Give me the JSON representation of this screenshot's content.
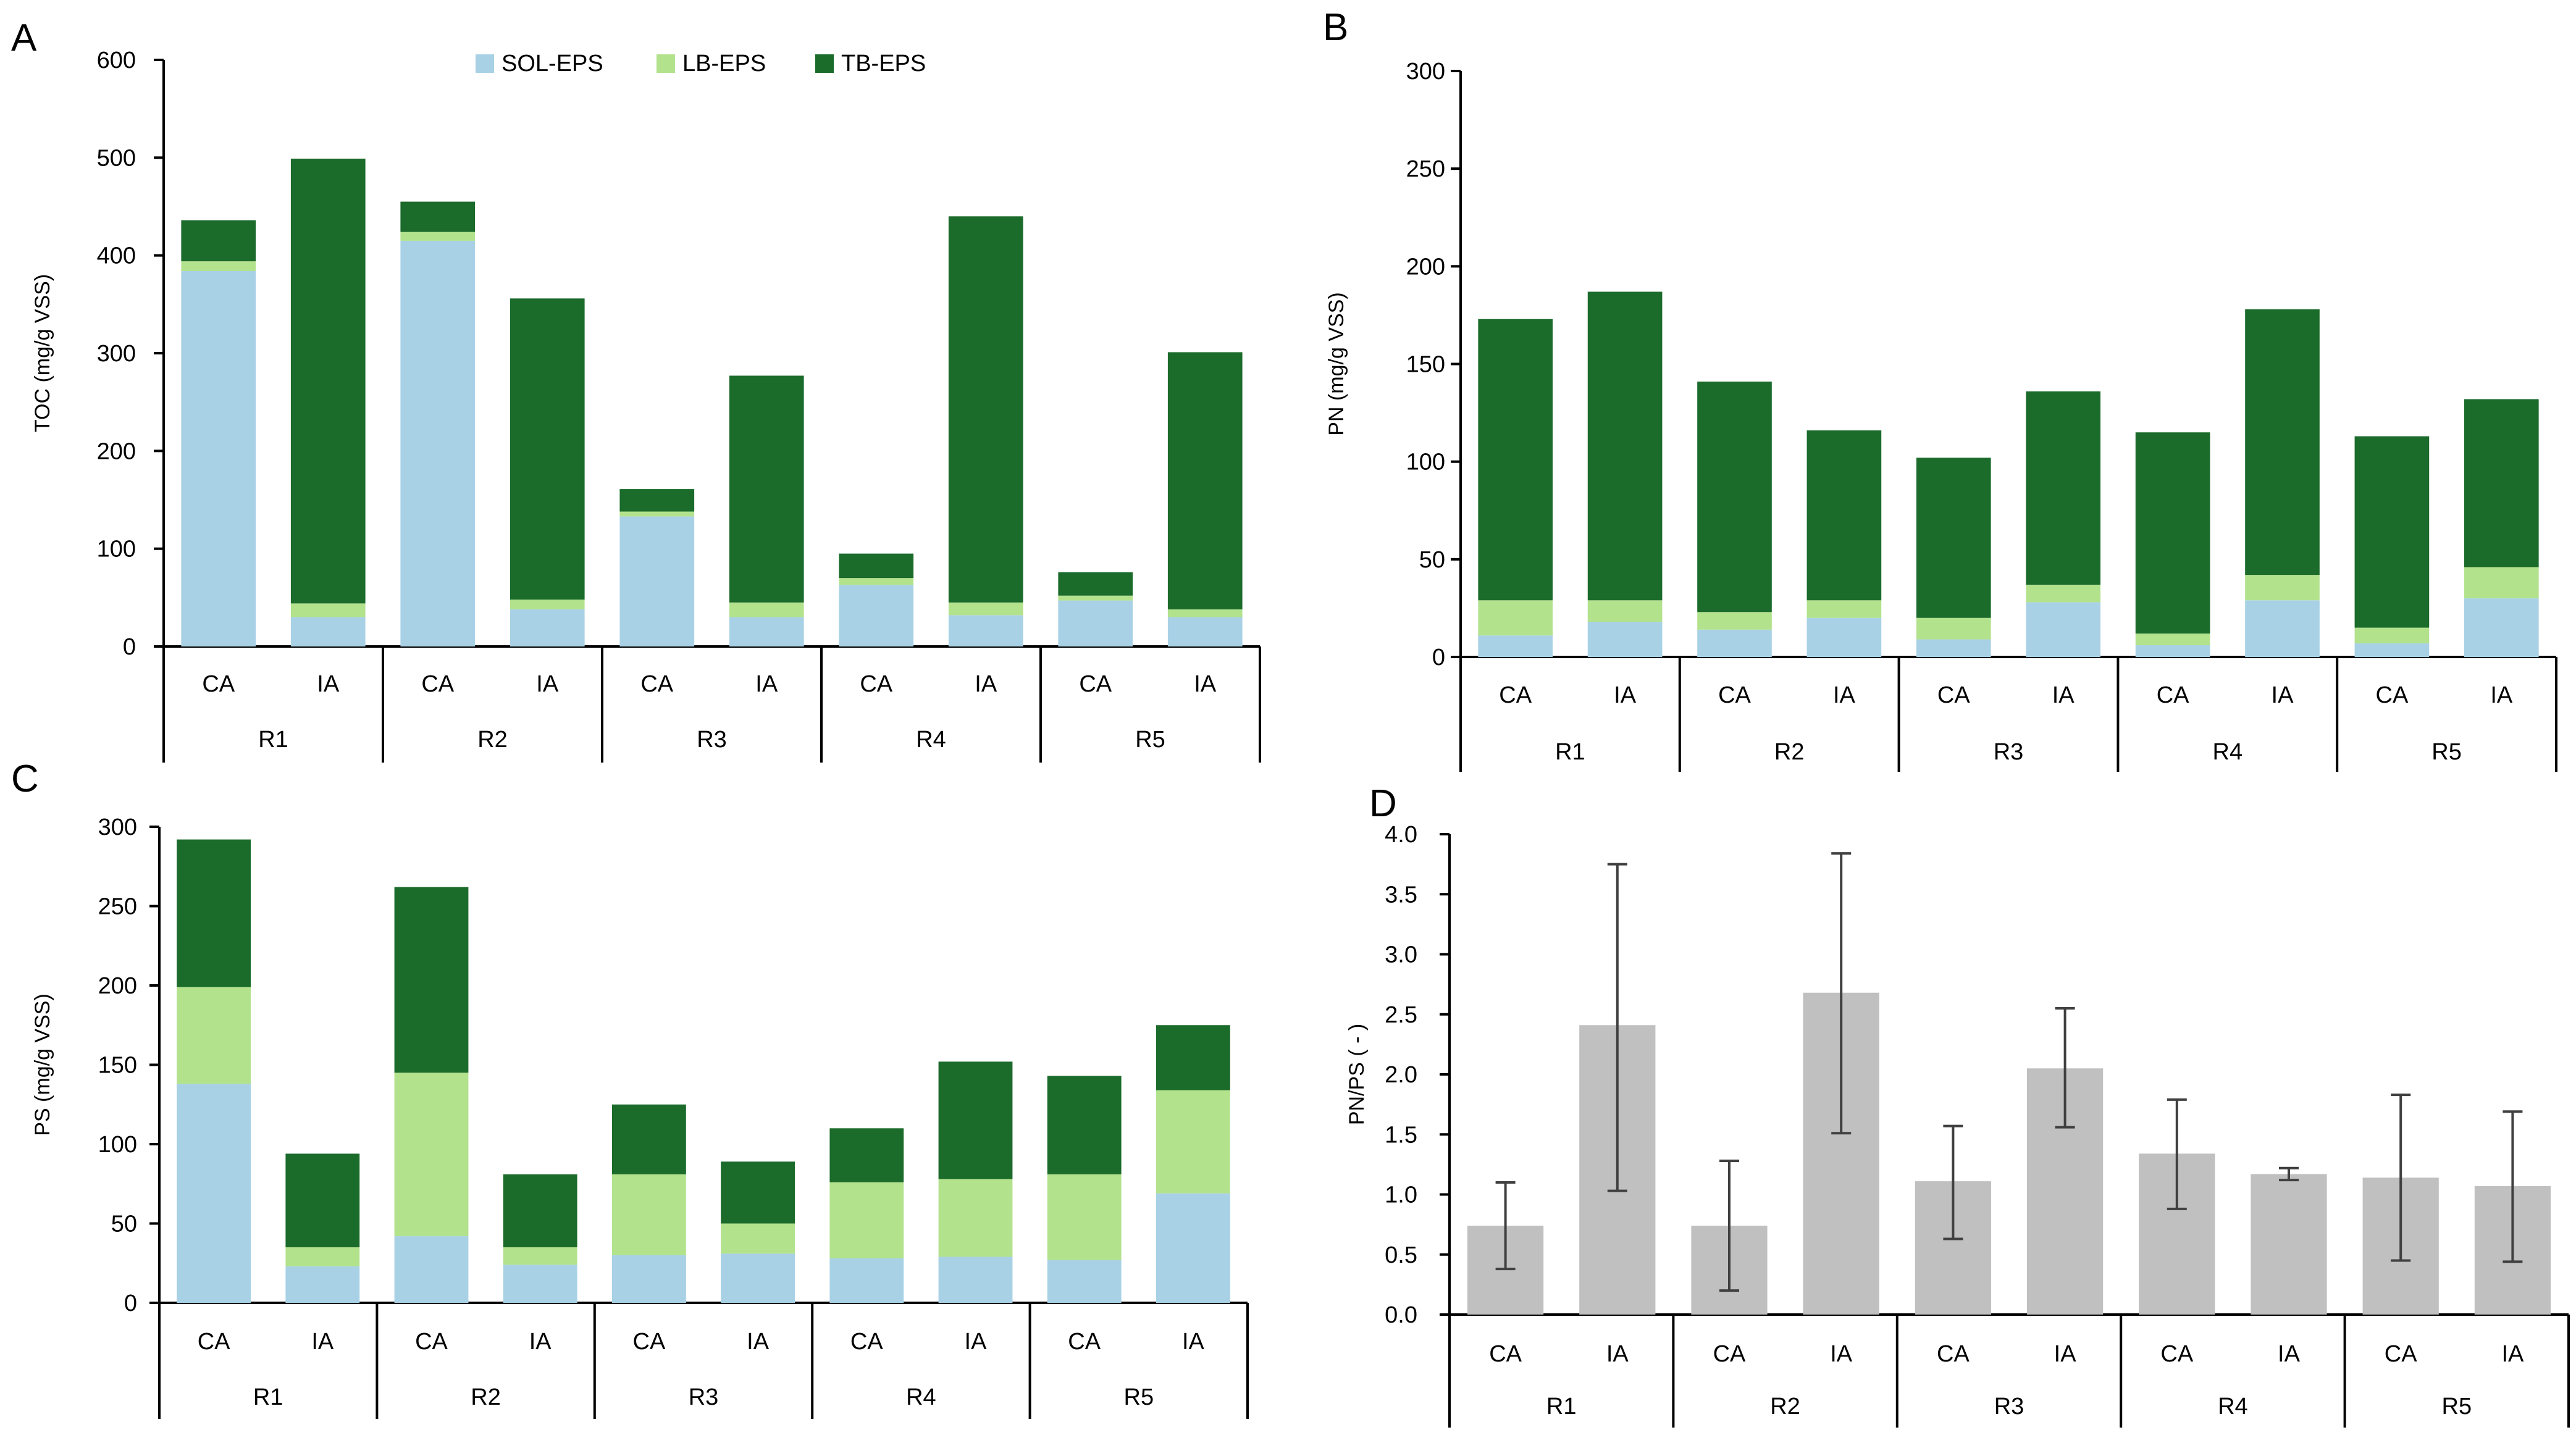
{
  "legend": [
    {
      "label": "SOL-EPS",
      "color": "#a8d1e6"
    },
    {
      "label": "LB-EPS",
      "color": "#b3e28d"
    },
    {
      "label": "TB-EPS",
      "color": "#1b6b2b"
    }
  ],
  "colors": {
    "sol": "#a8d1e6",
    "lb": "#b3e28d",
    "tb": "#1b6b2b",
    "ratio": "#c0c0c0",
    "error": "#404040"
  },
  "chart_data": [
    {
      "panel": "A",
      "type": "bar",
      "stacked": true,
      "ylabel": "TOC (mg/g VSS)",
      "ylim": [
        0,
        600
      ],
      "yticks": [
        "0",
        "100",
        "200",
        "300",
        "400",
        "500",
        "600"
      ],
      "groups": [
        "R1",
        "R2",
        "R3",
        "R4",
        "R5"
      ],
      "subcategories": [
        "CA",
        "IA"
      ],
      "series": [
        {
          "name": "SOL-EPS",
          "values": [
            384,
            30,
            415,
            38,
            133,
            30,
            63,
            32,
            47,
            30
          ]
        },
        {
          "name": "LB-EPS",
          "values": [
            10,
            14,
            9,
            10,
            5,
            15,
            7,
            13,
            5,
            8
          ]
        },
        {
          "name": "TB-EPS",
          "values": [
            42,
            455,
            31,
            308,
            23,
            232,
            25,
            395,
            24,
            263
          ]
        }
      ]
    },
    {
      "panel": "B",
      "type": "bar",
      "stacked": true,
      "ylabel": "PN (mg/g VSS)",
      "ylim": [
        0,
        300
      ],
      "yticks": [
        "0",
        "50",
        "100",
        "150",
        "200",
        "250",
        "300"
      ],
      "groups": [
        "R1",
        "R2",
        "R3",
        "R4",
        "R5"
      ],
      "subcategories": [
        "CA",
        "IA"
      ],
      "series": [
        {
          "name": "SOL-EPS",
          "values": [
            11,
            18,
            14,
            20,
            9,
            28,
            6,
            29,
            7,
            30
          ]
        },
        {
          "name": "LB-EPS",
          "values": [
            18,
            11,
            9,
            9,
            11,
            9,
            6,
            13,
            8,
            16
          ]
        },
        {
          "name": "TB-EPS",
          "values": [
            144,
            158,
            118,
            87,
            82,
            99,
            103,
            136,
            98,
            86
          ]
        }
      ]
    },
    {
      "panel": "C",
      "type": "bar",
      "stacked": true,
      "ylabel": "PS (mg/g VSS)",
      "ylim": [
        0,
        300
      ],
      "yticks": [
        "0",
        "50",
        "100",
        "150",
        "200",
        "250",
        "300"
      ],
      "groups": [
        "R1",
        "R2",
        "R3",
        "R4",
        "R5"
      ],
      "subcategories": [
        "CA",
        "IA"
      ],
      "series": [
        {
          "name": "SOL-EPS",
          "values": [
            138,
            23,
            42,
            24,
            30,
            31,
            28,
            29,
            27,
            69
          ]
        },
        {
          "name": "LB-EPS",
          "values": [
            61,
            12,
            103,
            11,
            51,
            19,
            48,
            49,
            54,
            65
          ]
        },
        {
          "name": "TB-EPS",
          "values": [
            93,
            59,
            117,
            46,
            44,
            39,
            34,
            74,
            62,
            41
          ]
        }
      ]
    },
    {
      "panel": "D",
      "type": "bar",
      "stacked": false,
      "ylabel": "PN/PS ( - )",
      "ylim": [
        0,
        4
      ],
      "yticks": [
        "0.0",
        "0.5",
        "1.0",
        "1.5",
        "2.0",
        "2.5",
        "3.0",
        "3.5",
        "4.0"
      ],
      "groups": [
        "R1",
        "R2",
        "R3",
        "R4",
        "R5"
      ],
      "subcategories": [
        "CA",
        "IA"
      ],
      "values": [
        0.74,
        2.41,
        0.74,
        2.68,
        1.11,
        2.05,
        1.34,
        1.17,
        1.14,
        1.07
      ],
      "err_low": [
        0.38,
        1.03,
        0.2,
        1.51,
        0.63,
        1.56,
        0.88,
        1.12,
        0.45,
        0.44
      ],
      "err_high": [
        1.1,
        3.75,
        1.28,
        3.84,
        1.57,
        2.55,
        1.79,
        1.22,
        1.83,
        1.69
      ]
    }
  ]
}
